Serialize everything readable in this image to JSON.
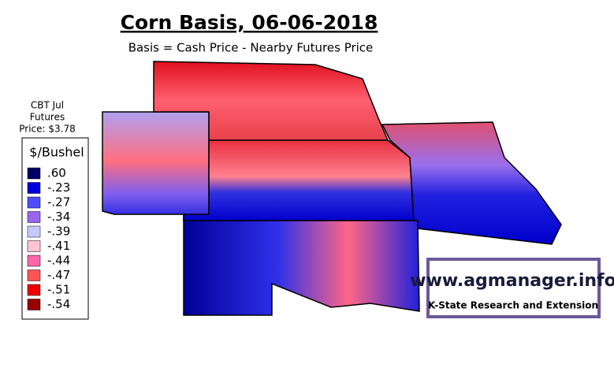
{
  "header": {
    "title": "Corn Basis, 06-06-2018",
    "subtitle": "Basis = Cash Price - Nearby Futures Price"
  },
  "futures": {
    "lines": [
      "CBT Jul",
      "Futures",
      "Price: $3.78"
    ]
  },
  "legend": {
    "title": "$/Bushel",
    "items": [
      {
        "label": ".60",
        "color": "#000066"
      },
      {
        "label": "-.23",
        "color": "#0000dd"
      },
      {
        "label": "-.27",
        "color": "#4d4dff"
      },
      {
        "label": "-.34",
        "color": "#9966ee"
      },
      {
        "label": "-.39",
        "color": "#c8c8ff"
      },
      {
        "label": "-.41",
        "color": "#ffc4d4"
      },
      {
        "label": "-.44",
        "color": "#ff66aa"
      },
      {
        "label": "-.47",
        "color": "#ff5555"
      },
      {
        "label": "-.51",
        "color": "#ee0000"
      },
      {
        "label": "-.54",
        "color": "#990000"
      }
    ]
  },
  "logo": {
    "url": "www.agmanager.info",
    "org": "K-State Research and Extension"
  }
}
